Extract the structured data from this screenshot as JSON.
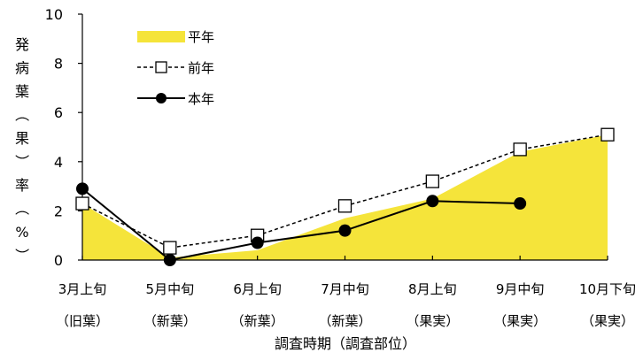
{
  "chart_data": {
    "type": "line",
    "xlabel": "調査時期（調査部位）",
    "ylabel": "発病葉（果）率（%）",
    "ylim": [
      0,
      10
    ],
    "yticks": [
      0,
      2,
      4,
      6,
      8,
      10
    ],
    "grid": false,
    "legend_position": "top-left",
    "categories": [
      "3月上旬",
      "5月中旬",
      "6月上旬",
      "7月中旬",
      "8月上旬",
      "9月中旬",
      "10月下旬"
    ],
    "sub_categories": [
      "（旧葉）",
      "（新葉）",
      "（新葉）",
      "（新葉）",
      "（果実）",
      "（果実）",
      "（果実）"
    ],
    "series": [
      {
        "name": "平年",
        "style": "area",
        "color": "#f5e43a",
        "values": [
          2.3,
          0.1,
          0.4,
          1.7,
          2.5,
          4.4,
          5.1
        ]
      },
      {
        "name": "前年",
        "style": "dashed-open-square",
        "color": "#000000",
        "values": [
          2.3,
          0.5,
          1.0,
          2.2,
          3.2,
          4.5,
          5.1
        ]
      },
      {
        "name": "本年",
        "style": "solid-filled-circle",
        "color": "#000000",
        "values": [
          2.9,
          0.0,
          0.7,
          1.2,
          2.4,
          2.3,
          null
        ]
      }
    ]
  }
}
